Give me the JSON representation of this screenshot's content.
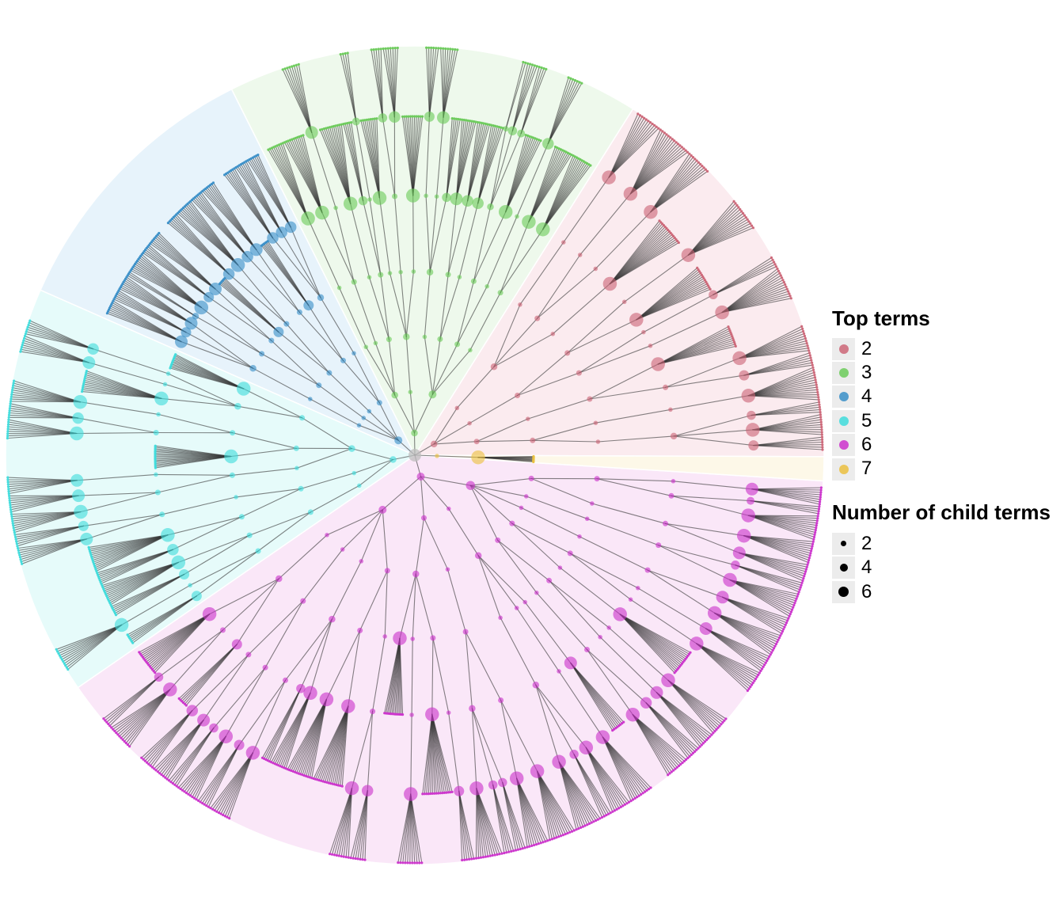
{
  "legend_top_terms": {
    "title": "Top terms",
    "items": [
      {
        "label": "2",
        "color": "#CC6677",
        "background": "#FBEBEF"
      },
      {
        "label": "3",
        "color": "#6CCB5B",
        "background": "#EEF9EC"
      },
      {
        "label": "4",
        "color": "#3A8FC8",
        "background": "#E7F3FB"
      },
      {
        "label": "5",
        "color": "#3FDCDC",
        "background": "#E6FBFA"
      },
      {
        "label": "6",
        "color": "#CC33CC",
        "background": "#FAE7F8"
      },
      {
        "label": "7",
        "color": "#EBC03F",
        "background": "#FDF8E8"
      }
    ]
  },
  "legend_child_terms": {
    "title": "Number of child terms",
    "items": [
      {
        "label": "2",
        "value": 2
      },
      {
        "label": "4",
        "value": 4
      },
      {
        "label": "6",
        "value": 6
      }
    ]
  },
  "colors": {
    "root_node": "#BDBDBD",
    "edge": "#333333",
    "size_key_dot": "#000000"
  }
}
